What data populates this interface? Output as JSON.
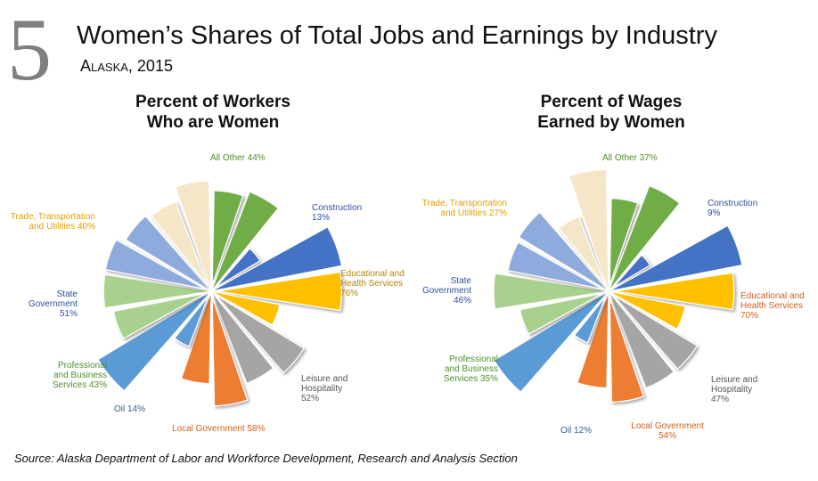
{
  "header": {
    "number": "5",
    "title": "Women’s Shares of Total Jobs and Earnings by Industry",
    "subtitle": "Alaska, 2015"
  },
  "chart_data": [
    {
      "type": "polar-area",
      "title_line1": "Percent of Workers",
      "title_line2": "Who are Women",
      "unit": "%",
      "categories": [
        {
          "name": "All Other",
          "label": "All Other 44%",
          "value": 44,
          "color": "#70ad47"
        },
        {
          "name": "All Other (men)",
          "label": "",
          "value": 56,
          "color": "#70ad47"
        },
        {
          "name": "Construction",
          "label": "Construction 13%",
          "value": 13,
          "color": "#4472c4"
        },
        {
          "name": "Construction (men)",
          "label": "",
          "value": 87,
          "color": "#4472c4"
        },
        {
          "name": "Educational and Health Services",
          "label": "Educational and Health Services 76%",
          "value": 76,
          "color": "#ffc000"
        },
        {
          "name": "Educational and Health Services (men)",
          "label": "",
          "value": 24,
          "color": "#ffc000"
        },
        {
          "name": "Leisure and Hospitality",
          "label": "Leisure and Hospitality 52%",
          "value": 52,
          "color": "#a5a5a5"
        },
        {
          "name": "Leisure and Hospitality (men)",
          "label": "",
          "value": 48,
          "color": "#a5a5a5"
        },
        {
          "name": "Local Government",
          "label": "Local Government 58%",
          "value": 58,
          "color": "#ed7d31"
        },
        {
          "name": "Local Government (men)",
          "label": "",
          "value": 42,
          "color": "#ed7d31"
        },
        {
          "name": "Oil",
          "label": "Oil 14%",
          "value": 14,
          "color": "#5b9bd5"
        },
        {
          "name": "Oil (men)",
          "label": "",
          "value": 86,
          "color": "#5b9bd5"
        },
        {
          "name": "Professional and Business Services",
          "label": "Professional and Business Services 43%",
          "value": 43,
          "color": "#a9d18e"
        },
        {
          "name": "Professional and Business Services (men)",
          "label": "",
          "value": 57,
          "color": "#a9d18e"
        },
        {
          "name": "State Government",
          "label": "State Government 51%",
          "value": 51,
          "color": "#8faadc"
        },
        {
          "name": "State Government (men)",
          "label": "",
          "value": 49,
          "color": "#8faadc"
        },
        {
          "name": "Trade, Transportation and Utilities",
          "label": "Trade, Transportation and Utilities 40%",
          "value": 40,
          "color": "#f5e6c8"
        },
        {
          "name": "Trade, Transportation and Utilities (men)",
          "label": "",
          "value": 60,
          "color": "#f5e6c8"
        }
      ]
    },
    {
      "type": "polar-area",
      "title_line1": "Percent of Wages",
      "title_line2": "Earned by Women",
      "unit": "%",
      "categories": [
        {
          "name": "All Other",
          "label": "All Other 37%",
          "value": 37,
          "color": "#70ad47"
        },
        {
          "name": "All Other (men)",
          "label": "",
          "value": 63,
          "color": "#70ad47"
        },
        {
          "name": "Construction",
          "label": "Construction 9%",
          "value": 9,
          "color": "#4472c4"
        },
        {
          "name": "Construction (men)",
          "label": "",
          "value": 91,
          "color": "#4472c4"
        },
        {
          "name": "Educational and Health Services",
          "label": "Educational and Health Services 70%",
          "value": 70,
          "color": "#ffc000"
        },
        {
          "name": "Educational and Health Services (men)",
          "label": "",
          "value": 30,
          "color": "#ffc000"
        },
        {
          "name": "Leisure and Hospitality",
          "label": "Leisure and Hospitality 47%",
          "value": 47,
          "color": "#a5a5a5"
        },
        {
          "name": "Leisure and Hospitality (men)",
          "label": "",
          "value": 53,
          "color": "#a5a5a5"
        },
        {
          "name": "Local Government",
          "label": "Local Government 54%",
          "value": 54,
          "color": "#ed7d31"
        },
        {
          "name": "Local Government (men)",
          "label": "",
          "value": 46,
          "color": "#ed7d31"
        },
        {
          "name": "Oil",
          "label": "Oil 12%",
          "value": 12,
          "color": "#5b9bd5"
        },
        {
          "name": "Oil (men)",
          "label": "",
          "value": 88,
          "color": "#5b9bd5"
        },
        {
          "name": "Professional and Business Services",
          "label": "Professional and Business Services 35%",
          "value": 35,
          "color": "#a9d18e"
        },
        {
          "name": "Professional and Business Services (men)",
          "label": "",
          "value": 65,
          "color": "#a9d18e"
        },
        {
          "name": "State Government",
          "label": "State Government 46%",
          "value": 46,
          "color": "#8faadc"
        },
        {
          "name": "State Government (men)",
          "label": "",
          "value": 54,
          "color": "#8faadc"
        },
        {
          "name": "Trade, Transportation and Utilities",
          "label": "Trade, Transportation and Utilities 27%",
          "value": 27,
          "color": "#f5e6c8"
        },
        {
          "name": "Trade, Transportation and Utilities (men)",
          "label": "",
          "value": 73,
          "color": "#f5e6c8"
        }
      ]
    }
  ],
  "labels": {
    "left": {
      "all_other": [
        "All Other 44%"
      ],
      "construction": [
        "Construction",
        "13%"
      ],
      "edu": [
        "Educational and",
        "Health Services",
        "76%"
      ],
      "leisure": [
        "Leisure and",
        "Hospitality",
        "52%"
      ],
      "local_gov": [
        "Local Government 58%"
      ],
      "oil": [
        "Oil 14%"
      ],
      "prof": [
        "Professional",
        "and Business",
        "Services 43%"
      ],
      "state_gov": [
        "State",
        "Government",
        "51%"
      ],
      "trade": [
        "Trade, Transportation",
        "and Utilities 40%"
      ]
    },
    "right": {
      "all_other": [
        "All Other 37%"
      ],
      "construction": [
        "Construction",
        "9%"
      ],
      "edu": [
        "Educational and",
        "Health Services",
        "70%"
      ],
      "leisure": [
        "Leisure and",
        "Hospitality",
        "47%"
      ],
      "local_gov": [
        "Local Government",
        "54%"
      ],
      "oil": [
        "Oil 12%"
      ],
      "prof": [
        "Professional",
        "and Business",
        "Services 35%"
      ],
      "state_gov": [
        "State",
        "Government",
        "46%"
      ],
      "trade": [
        "Trade, Transportation",
        "and Utilities 27%"
      ]
    }
  },
  "footer": {
    "source": "Source: Alaska Department of Labor and Workforce Development, Research and Analysis Section"
  }
}
